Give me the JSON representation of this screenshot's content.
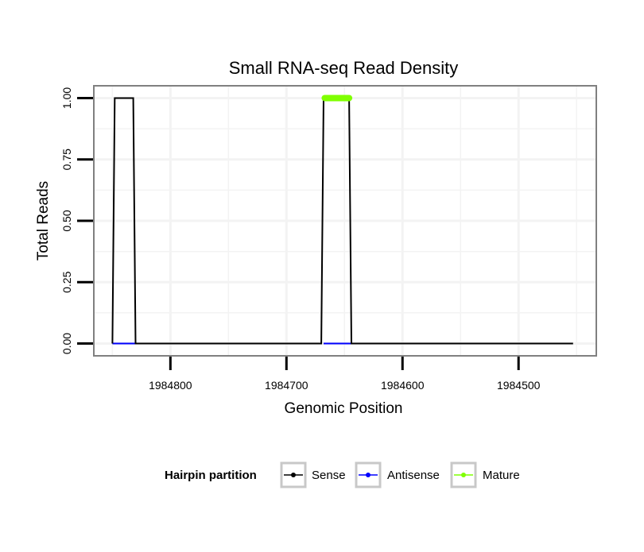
{
  "chart_data": {
    "type": "line",
    "title": "Small RNA-seq Read Density",
    "xlabel": "Genomic Position",
    "ylabel": "Total Reads",
    "x_reversed": true,
    "xlim": [
      1984866,
      1984433
    ],
    "ylim": [
      -0.05,
      1.05
    ],
    "grid": true,
    "x_ticks": [
      1984800,
      1984700,
      1984600,
      1984500
    ],
    "x_tick_labels": [
      "1984800",
      "1984700",
      "1984600",
      "1984500"
    ],
    "y_ticks": [
      0,
      0.25,
      0.5,
      0.75,
      1
    ],
    "y_tick_labels": [
      "0.00",
      "0.25",
      "0.50",
      "0.75",
      "1.00"
    ],
    "legend": {
      "position": "bottom",
      "title": "Hairpin partition",
      "entries": [
        "Sense",
        "Antisense",
        "Mature"
      ]
    },
    "series": [
      {
        "name": "Sense",
        "color": "#000000",
        "points": [
          [
            1984850,
            0
          ],
          [
            1984848,
            1
          ],
          [
            1984832,
            1
          ],
          [
            1984830,
            0
          ],
          [
            1984670,
            0
          ],
          [
            1984668,
            1
          ],
          [
            1984646,
            1
          ],
          [
            1984644,
            0
          ],
          [
            1984453,
            0
          ]
        ]
      },
      {
        "name": "Antisense",
        "color": "#0000ff",
        "points": [
          [
            1984850,
            0
          ],
          [
            1984830,
            0
          ],
          [
            1984668,
            0
          ],
          [
            1984644,
            0
          ]
        ]
      },
      {
        "name": "Mature",
        "color": "#7fff00",
        "points": [
          [
            1984667,
            1
          ],
          [
            1984646,
            1
          ]
        ]
      }
    ]
  }
}
